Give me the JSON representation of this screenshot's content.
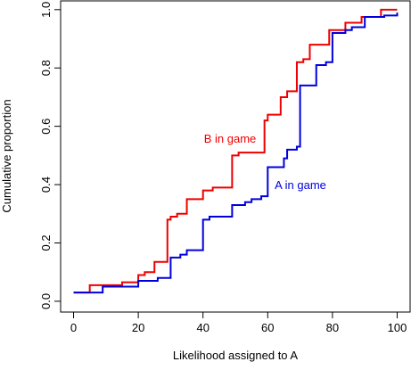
{
  "chart_data": {
    "type": "step-line",
    "x_label": "Likelihood assigned to A",
    "y_label": "Cumulative proportion",
    "xlim": [
      -4,
      104
    ],
    "ylim": [
      -0.037,
      1.03
    ],
    "xticks": [
      0,
      20,
      40,
      60,
      80,
      100
    ],
    "yticks": [
      {
        "value": 0,
        "label": "0.0"
      },
      {
        "value": 0.2,
        "label": "0.2"
      },
      {
        "value": 0.4,
        "label": "0.4"
      },
      {
        "value": 0.6,
        "label": "0.6"
      },
      {
        "value": 0.8,
        "label": "0.8"
      },
      {
        "value": 1,
        "label": "1.0"
      }
    ],
    "series": [
      {
        "name": "B in game",
        "color": "#ee0000",
        "x": [
          0,
          5,
          15,
          20,
          22,
          25,
          29,
          30,
          32,
          35,
          40,
          43,
          49,
          51,
          59,
          60,
          64,
          66,
          69,
          71,
          73,
          79,
          84,
          89,
          95,
          100
        ],
        "values": [
          0.03,
          0.055,
          0.065,
          0.09,
          0.1,
          0.135,
          0.28,
          0.29,
          0.3,
          0.35,
          0.38,
          0.39,
          0.5,
          0.51,
          0.62,
          0.64,
          0.7,
          0.72,
          0.82,
          0.83,
          0.88,
          0.93,
          0.955,
          0.975,
          1.0,
          1.0
        ]
      },
      {
        "name": "A in game",
        "color": "#0000dd",
        "x": [
          0,
          9,
          20,
          26,
          30,
          33,
          35,
          40,
          42,
          49,
          53,
          55,
          58,
          60,
          65,
          66,
          69,
          70,
          75,
          78,
          80,
          84,
          86,
          90,
          96,
          100
        ],
        "values": [
          0.03,
          0.05,
          0.07,
          0.08,
          0.15,
          0.16,
          0.175,
          0.28,
          0.29,
          0.33,
          0.34,
          0.35,
          0.36,
          0.46,
          0.49,
          0.52,
          0.53,
          0.74,
          0.81,
          0.82,
          0.92,
          0.93,
          0.94,
          0.975,
          0.98,
          0.99
        ]
      }
    ]
  }
}
